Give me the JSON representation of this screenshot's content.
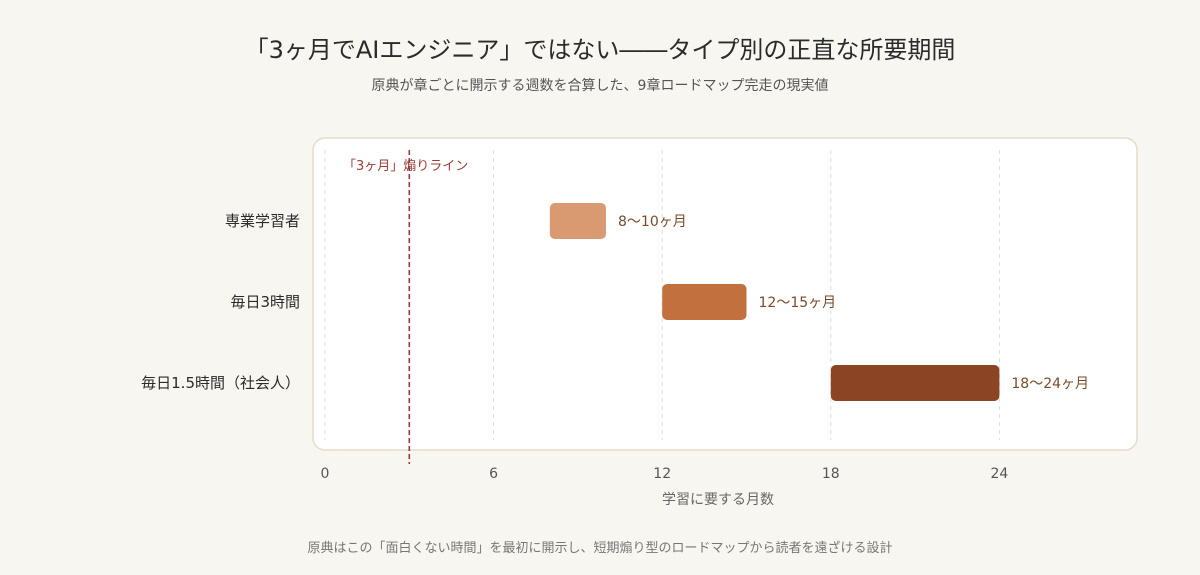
{
  "title": "「3ヶ月でAIエンジニア」ではない――タイプ別の正直な所要期間",
  "subtitle": "原典が章ごとに開示する週数を合算した、9章ロードマップ完走の現実値",
  "footnote": "原典はこの「面白くない時間」を最初に開示し、短期煽り型のロードマップから読者を遠ざける設計",
  "chart_data": {
    "type": "bar",
    "orientation": "horizontal-range",
    "title": "「3ヶ月でAIエンジニア」ではない――タイプ別の正直な所要期間",
    "subtitle": "原典が章ごとに開示する週数を合算した、9章ロードマップ完走の現実値",
    "xlabel": "学習に要する月数",
    "ylabel": "",
    "xlim": [
      0,
      29.3
    ],
    "xticks": [
      0,
      6,
      12,
      18,
      24
    ],
    "grid": true,
    "categories": [
      "専業学習者",
      "毎日3時間",
      "毎日1.5時間（社会人）"
    ],
    "ranges": [
      {
        "category": "専業学習者",
        "start": 8,
        "end": 10,
        "label": "8〜10ヶ月",
        "color": "#d99a72"
      },
      {
        "category": "毎日3時間",
        "start": 12,
        "end": 15,
        "label": "12〜15ヶ月",
        "color": "#c2703e"
      },
      {
        "category": "毎日1.5時間（社会人）",
        "start": 18,
        "end": 24,
        "label": "18〜24ヶ月",
        "color": "#8b4524"
      }
    ],
    "reference_line": {
      "x": 3,
      "label": "「3ヶ月」煽りライン",
      "color": "#9a3b34"
    }
  }
}
